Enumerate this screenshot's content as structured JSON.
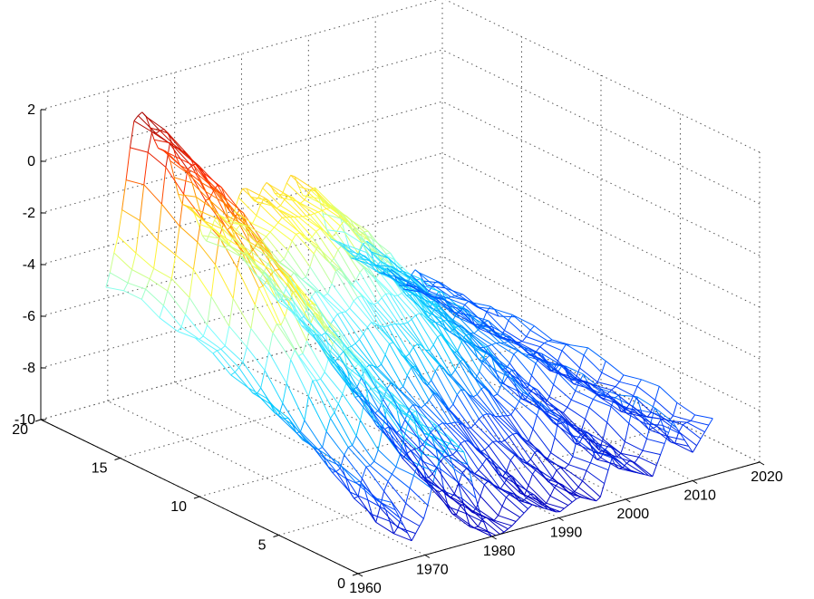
{
  "chart_data": {
    "type": "surface-mesh",
    "x_axis": {
      "ticks": [
        "1960",
        "1970",
        "1980",
        "1990",
        "2000",
        "2010",
        "2020"
      ],
      "range": [
        1960,
        2020
      ]
    },
    "y_axis": {
      "ticks": [
        "0",
        "5",
        "10",
        "15",
        "20"
      ],
      "range": [
        0,
        20
      ]
    },
    "z_axis": {
      "ticks": [
        "-10",
        "-8",
        "-6",
        "-4",
        "-2",
        "0",
        "2"
      ],
      "range": [
        -10,
        2
      ]
    },
    "grid": true,
    "colormap": [
      "#0000bf",
      "#0044ff",
      "#00c8ff",
      "#7dffff",
      "#ffff40",
      "#ff9d00",
      "#ff2a00",
      "#a00000"
    ],
    "mesh_x_range": [
      1965,
      2013
    ],
    "mesh_y_range": [
      0,
      18
    ],
    "profiles": {
      "note_units": "x in years, z in data units",
      "front_y0": [
        [
          1965,
          -7.6
        ],
        [
          1968,
          -9.3
        ],
        [
          1970,
          -8.5
        ],
        [
          1972,
          -6.5
        ],
        [
          1974,
          -5.8
        ],
        [
          1976,
          -6.5
        ],
        [
          1978,
          -8.8
        ],
        [
          1980,
          -10.2
        ],
        [
          1983,
          -9.8
        ],
        [
          1986,
          -9.2
        ],
        [
          1990,
          -9.8
        ],
        [
          1993,
          -9.4
        ],
        [
          1996,
          -9.8
        ],
        [
          1998,
          -8.2
        ],
        [
          2001,
          -9.0
        ],
        [
          2004,
          -9.4
        ],
        [
          2007,
          -7.5
        ],
        [
          2010,
          -8.9
        ],
        [
          2013,
          -7.8
        ]
      ],
      "back_y18": [
        [
          1965,
          -4.3
        ],
        [
          1967,
          -3.0
        ],
        [
          1969,
          1.8
        ],
        [
          1972,
          1.0
        ],
        [
          1975,
          -1.0
        ],
        [
          1978,
          -3.0
        ],
        [
          1980,
          -3.6
        ],
        [
          1983,
          -3.2
        ],
        [
          1986,
          -2.5
        ],
        [
          1990,
          -2.7
        ],
        [
          1993,
          -2.6
        ],
        [
          1996,
          -3.2
        ],
        [
          2000,
          -5.8
        ],
        [
          2004,
          -6.0
        ],
        [
          2008,
          -7.5
        ],
        [
          2013,
          -7.7
        ]
      ]
    }
  }
}
